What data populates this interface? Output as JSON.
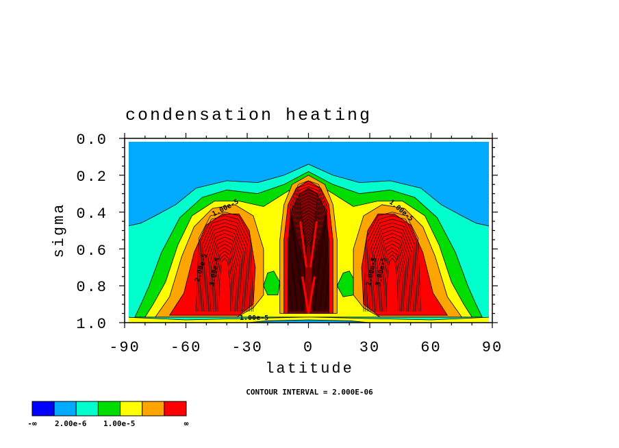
{
  "chart_data": {
    "type": "contour",
    "title": "condensation heating",
    "xlabel": "latitude",
    "ylabel": "sigma",
    "xlim": [
      -90,
      90
    ],
    "ylim": [
      1.0,
      0.0
    ],
    "x_ticks": [
      "-90",
      "-60",
      "-30",
      "0",
      "30",
      "60",
      "90"
    ],
    "y_ticks": [
      "0.0",
      "0.2",
      "0.4",
      "0.6",
      "0.8",
      "1.0"
    ],
    "contour_interval_note": "CONTOUR INTERVAL = 2.000E-06",
    "contour_labels": [
      "1.00e-5",
      "1.00e-5",
      "2.00e-5",
      "3.00e-5",
      "2.00e-5",
      "3.00e-5",
      "1.00e-5"
    ],
    "colorbar": {
      "colors": [
        "#0000ff",
        "#00aaff",
        "#00ffcc",
        "#00dd00",
        "#ffff00",
        "#ffa500",
        "#ff0000"
      ],
      "labels": [
        "-∞",
        "2.00e-6",
        "1.00e-5",
        "∞"
      ]
    },
    "colors": {
      "c0": "#0000ff",
      "c1": "#00aaff",
      "c2": "#00ffcc",
      "c3": "#00dd00",
      "c4": "#ffff00",
      "c5": "#ffa500",
      "c6": "#ff0000",
      "c7": "#8b0000"
    }
  }
}
